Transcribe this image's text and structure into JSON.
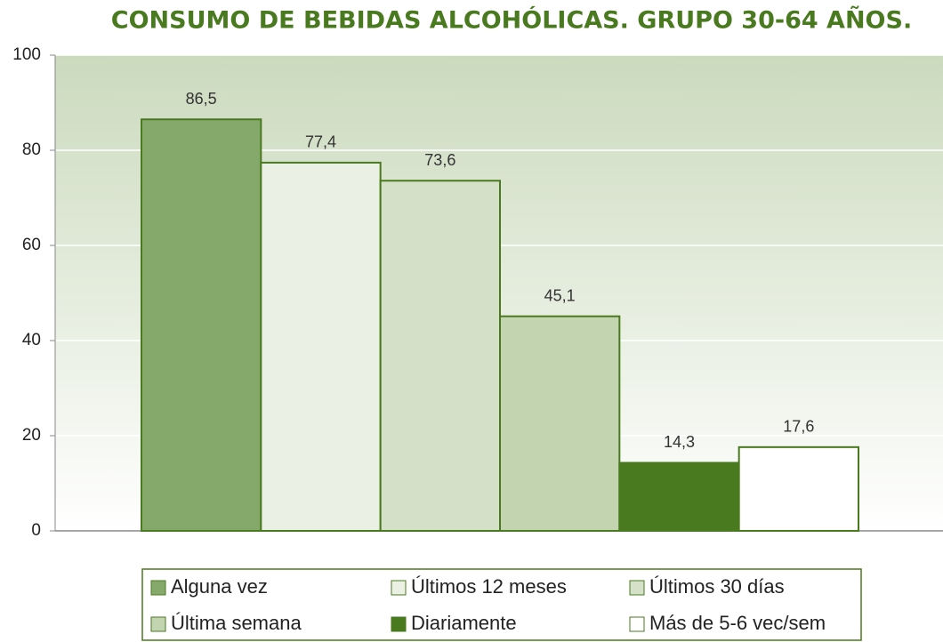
{
  "chart_data": {
    "type": "bar",
    "title": "CONSUMO DE BEBIDAS ALCOHÓLICAS. GRUPO 30-64 AÑOS.",
    "categories": [
      "Alguna vez",
      "Últimos 12 meses",
      "Últimos 30 días",
      "Última semana",
      "Diariamente",
      "Más de 5-6 vec/sem"
    ],
    "values": [
      86.5,
      77.4,
      73.6,
      45.1,
      14.3,
      17.6
    ],
    "value_labels": [
      "86,5",
      "77,4",
      "73,6",
      "45,1",
      "14,3",
      "17,6"
    ],
    "colors": [
      "#85a96b",
      "#eaf0e4",
      "#d5e0c9",
      "#c2d4b0",
      "#4a7a1f",
      "#ffffff"
    ],
    "ylim": [
      0,
      100
    ],
    "yticks": [
      0,
      20,
      40,
      60,
      80,
      100
    ],
    "grid": true
  }
}
